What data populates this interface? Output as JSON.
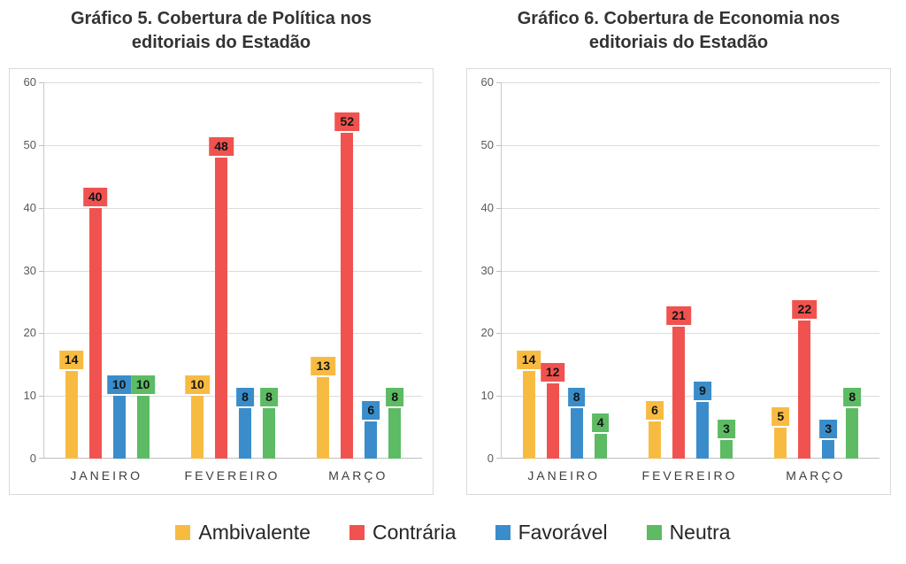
{
  "chart_data": [
    {
      "type": "bar",
      "title": "Gráfico 5. Cobertura de Política nos editoriais do Estadão",
      "categories": [
        "JANEIRO",
        "FEVEREIRO",
        "MARÇO"
      ],
      "series": [
        {
          "name": "Ambivalente",
          "color": "#F8BB42",
          "values": [
            14,
            10,
            13
          ]
        },
        {
          "name": "Contrária",
          "color": "#F0534F",
          "values": [
            40,
            48,
            52
          ]
        },
        {
          "name": "Favorável",
          "color": "#3A8DCA",
          "values": [
            10,
            8,
            6
          ]
        },
        {
          "name": "Neutra",
          "color": "#5CBB63",
          "values": [
            10,
            8,
            8
          ]
        }
      ],
      "ylim": [
        0,
        60
      ],
      "yticks": [
        0,
        10,
        20,
        30,
        40,
        50,
        60
      ],
      "grid": true,
      "data_labels": true,
      "xlabel": "",
      "ylabel": ""
    },
    {
      "type": "bar",
      "title": "Gráfico 6. Cobertura de Economia nos editoriais do Estadão",
      "categories": [
        "JANEIRO",
        "FEVEREIRO",
        "MARÇO"
      ],
      "series": [
        {
          "name": "Ambivalente",
          "color": "#F8BB42",
          "values": [
            14,
            6,
            5
          ]
        },
        {
          "name": "Contrária",
          "color": "#F0534F",
          "values": [
            12,
            21,
            22
          ]
        },
        {
          "name": "Favorável",
          "color": "#3A8DCA",
          "values": [
            8,
            9,
            3
          ]
        },
        {
          "name": "Neutra",
          "color": "#5CBB63",
          "values": [
            4,
            3,
            8
          ]
        }
      ],
      "ylim": [
        0,
        60
      ],
      "yticks": [
        0,
        10,
        20,
        30,
        40,
        50,
        60
      ],
      "grid": true,
      "data_labels": true,
      "xlabel": "",
      "ylabel": ""
    }
  ],
  "legend": {
    "position": "bottom",
    "items": [
      {
        "label": "Ambivalente",
        "color": "#F8BB42"
      },
      {
        "label": "Contrária",
        "color": "#F0534F"
      },
      {
        "label": "Favorável",
        "color": "#3A8DCA"
      },
      {
        "label": "Neutra",
        "color": "#5CBB63"
      }
    ]
  }
}
